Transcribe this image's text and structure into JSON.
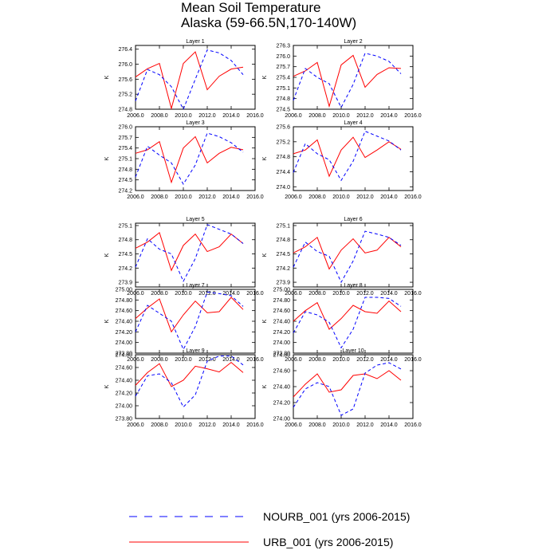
{
  "page": {
    "title": "Mean Soil Temperature",
    "subtitle": "Alaska (59-66.5N,170-140W)"
  },
  "legend": {
    "entries": [
      {
        "label": "NOURB_001 (yrs 2006-2015)",
        "series": "NOURB_001",
        "style": "dashed",
        "color": "#0000ff"
      },
      {
        "label": "URB_001 (yrs 2006-2015)",
        "series": "URB_001",
        "style": "solid",
        "color": "#ff0000"
      }
    ],
    "placement": "bottom"
  },
  "chart_data": [
    {
      "type": "line",
      "title": "Layer 1",
      "ylabel": "K",
      "xlim": [
        2006,
        2016
      ],
      "xticks": [
        "2006.0",
        "2008.0",
        "2010.0",
        "2012.0",
        "2014.0",
        "2016.0"
      ],
      "ylim": [
        274.8,
        276.5
      ],
      "yticks": [
        "274.8",
        "275.2",
        "275.6",
        "276.0",
        "276.4"
      ],
      "yticks_num": [
        274.8,
        275.2,
        275.6,
        276.0,
        276.4
      ],
      "x": [
        2006,
        2007,
        2008,
        2009,
        2010,
        2011,
        2012,
        2013,
        2014,
        2015
      ],
      "series": [
        {
          "name": "URB_001",
          "values": [
            275.66,
            275.88,
            276.02,
            274.82,
            276.02,
            276.33,
            275.32,
            275.68,
            275.87,
            275.92
          ]
        },
        {
          "name": "NOURB_001",
          "values": [
            275.02,
            275.86,
            275.72,
            275.4,
            274.8,
            275.6,
            276.38,
            276.3,
            276.1,
            275.72
          ]
        }
      ]
    },
    {
      "type": "line",
      "title": "Layer 2",
      "ylabel": "K",
      "xlim": [
        2006,
        2016
      ],
      "xticks": [
        "2006.0",
        "2008.0",
        "2010.0",
        "2012.0",
        "2014.0",
        "2016.0"
      ],
      "ylim": [
        274.5,
        276.3
      ],
      "yticks": [
        "274.5",
        "274.8",
        "275.1",
        "275.4",
        "275.7",
        "276.0",
        "276.3"
      ],
      "yticks_num": [
        274.5,
        274.8,
        275.1,
        275.4,
        275.7,
        276.0,
        276.3
      ],
      "x": [
        2006,
        2007,
        2008,
        2009,
        2010,
        2011,
        2012,
        2013,
        2014,
        2015
      ],
      "series": [
        {
          "name": "URB_001",
          "values": [
            275.43,
            275.58,
            275.82,
            274.58,
            275.75,
            276.02,
            275.12,
            275.48,
            275.67,
            275.65
          ]
        },
        {
          "name": "NOURB_001",
          "values": [
            274.75,
            275.65,
            275.4,
            275.22,
            274.55,
            275.2,
            276.08,
            276.0,
            275.85,
            275.5
          ]
        }
      ]
    },
    {
      "type": "line",
      "title": "Layer 3",
      "ylabel": "K",
      "xlim": [
        2006,
        2016
      ],
      "xticks": [
        "2006.0",
        "2008.0",
        "2010.0",
        "2012.0",
        "2014.0",
        "2016.0"
      ],
      "ylim": [
        274.2,
        276.0
      ],
      "yticks": [
        "274.2",
        "274.5",
        "274.8",
        "275.1",
        "275.4",
        "275.7",
        "276.0"
      ],
      "yticks_num": [
        274.2,
        274.5,
        274.8,
        275.1,
        275.4,
        275.7,
        276.0
      ],
      "x": [
        2006,
        2007,
        2008,
        2009,
        2010,
        2011,
        2012,
        2013,
        2014,
        2015
      ],
      "series": [
        {
          "name": "URB_001",
          "values": [
            275.25,
            275.35,
            275.58,
            274.43,
            275.4,
            275.72,
            274.98,
            275.25,
            275.42,
            275.35
          ]
        },
        {
          "name": "NOURB_001",
          "values": [
            274.58,
            275.45,
            275.2,
            274.98,
            274.38,
            274.92,
            275.82,
            275.72,
            275.55,
            275.28
          ]
        }
      ]
    },
    {
      "type": "line",
      "title": "Layer 4",
      "ylabel": "K",
      "xlim": [
        2006,
        2016
      ],
      "xticks": [
        "2006.0",
        "2008.0",
        "2010.0",
        "2012.0",
        "2014.0",
        "2016.0"
      ],
      "ylim": [
        273.9,
        275.6
      ],
      "yticks": [
        "274.0",
        "274.4",
        "274.8",
        "275.2",
        "275.6"
      ],
      "yticks_num": [
        274.0,
        274.4,
        274.8,
        275.2,
        275.6
      ],
      "x": [
        2006,
        2007,
        2008,
        2009,
        2010,
        2011,
        2012,
        2013,
        2014,
        2015
      ],
      "series": [
        {
          "name": "URB_001",
          "values": [
            274.88,
            274.98,
            275.25,
            274.28,
            274.98,
            275.32,
            274.78,
            274.98,
            275.2,
            275.0
          ]
        },
        {
          "name": "NOURB_001",
          "values": [
            274.38,
            275.15,
            274.88,
            274.72,
            274.17,
            274.68,
            275.48,
            275.35,
            275.22,
            274.98
          ]
        }
      ]
    },
    {
      "type": "line",
      "title": "Layer 5",
      "ylabel": "K",
      "xlim": [
        2006,
        2016
      ],
      "xticks": [
        "2006.0",
        "2008.0",
        "2010.0",
        "2012.0",
        "2014.0",
        "2016.0"
      ],
      "ylim": [
        273.8,
        275.15
      ],
      "yticks": [
        "273.9",
        "274.2",
        "274.5",
        "274.8",
        "275.1"
      ],
      "yticks_num": [
        273.9,
        274.2,
        274.5,
        274.8,
        275.1
      ],
      "x": [
        2006,
        2007,
        2008,
        2009,
        2010,
        2011,
        2012,
        2013,
        2014,
        2015
      ],
      "series": [
        {
          "name": "URB_001",
          "values": [
            274.62,
            274.75,
            274.95,
            274.15,
            274.68,
            274.92,
            274.55,
            274.65,
            274.92,
            274.72
          ]
        },
        {
          "name": "NOURB_001",
          "values": [
            274.22,
            274.82,
            274.6,
            274.5,
            273.92,
            274.4,
            275.12,
            275.02,
            274.92,
            274.72
          ]
        }
      ]
    },
    {
      "type": "line",
      "title": "Layer 6",
      "ylabel": "K",
      "xlim": [
        2006,
        2016
      ],
      "xticks": [
        "2006.0",
        "2008.0",
        "2010.0",
        "2012.0",
        "2014.0",
        "2016.0"
      ],
      "ylim": [
        273.8,
        275.15
      ],
      "yticks": [
        "273.9",
        "274.2",
        "274.5",
        "274.8",
        "275.1"
      ],
      "yticks_num": [
        273.9,
        274.2,
        274.5,
        274.8,
        275.1
      ],
      "x": [
        2006,
        2007,
        2008,
        2009,
        2010,
        2011,
        2012,
        2013,
        2014,
        2015
      ],
      "series": [
        {
          "name": "URB_001",
          "values": [
            274.52,
            274.65,
            274.85,
            274.18,
            274.58,
            274.82,
            274.52,
            274.58,
            274.85,
            274.65
          ]
        },
        {
          "name": "NOURB_001",
          "values": [
            274.22,
            274.75,
            274.55,
            274.45,
            273.9,
            274.35,
            274.98,
            274.92,
            274.85,
            274.68
          ]
        }
      ]
    },
    {
      "type": "line",
      "title": "Layer 7",
      "ylabel": "K",
      "xlim": [
        2006,
        2016
      ],
      "xticks": [
        "2006.0",
        "2008.0",
        "2010.0",
        "2012.0",
        "2014.0",
        "2016.0"
      ],
      "ylim": [
        273.8,
        275.0
      ],
      "yticks": [
        "273.80",
        "274.00",
        "274.20",
        "274.40",
        "274.60",
        "274.80",
        "275.00"
      ],
      "yticks_num": [
        273.8,
        274.0,
        274.2,
        274.4,
        274.6,
        274.8,
        275.0
      ],
      "x": [
        2006,
        2007,
        2008,
        2009,
        2010,
        2011,
        2012,
        2013,
        2014,
        2015
      ],
      "series": [
        {
          "name": "URB_001",
          "values": [
            274.45,
            274.65,
            274.82,
            274.2,
            274.52,
            274.78,
            274.56,
            274.58,
            274.85,
            274.62
          ]
        },
        {
          "name": "NOURB_001",
          "values": [
            274.2,
            274.7,
            274.55,
            274.4,
            273.87,
            274.3,
            274.95,
            274.92,
            274.88,
            274.68
          ]
        }
      ]
    },
    {
      "type": "line",
      "title": "Layer 8",
      "ylabel": "K",
      "xlim": [
        2006,
        2016
      ],
      "xticks": [
        "2006.0",
        "2008.0",
        "2010.0",
        "2012.0",
        "2014.0",
        "2016.0"
      ],
      "ylim": [
        273.8,
        275.0
      ],
      "yticks": [
        "273.80",
        "274.00",
        "274.20",
        "274.40",
        "274.60",
        "274.80",
        "275.00"
      ],
      "yticks_num": [
        273.8,
        274.0,
        274.2,
        274.4,
        274.6,
        274.8,
        275.0
      ],
      "x": [
        2006,
        2007,
        2008,
        2009,
        2010,
        2011,
        2012,
        2013,
        2014,
        2015
      ],
      "series": [
        {
          "name": "URB_001",
          "values": [
            274.4,
            274.6,
            274.75,
            274.25,
            274.45,
            274.7,
            274.58,
            274.55,
            274.78,
            274.58
          ]
        },
        {
          "name": "NOURB_001",
          "values": [
            274.18,
            274.58,
            274.52,
            274.38,
            273.9,
            274.25,
            274.85,
            274.85,
            274.83,
            274.68
          ]
        }
      ]
    },
    {
      "type": "line",
      "title": "Layer 9",
      "ylabel": "K",
      "xlim": [
        2006,
        2016
      ],
      "xticks": [
        "2006.0",
        "2008.0",
        "2010.0",
        "2012.0",
        "2014.0",
        "2016.0"
      ],
      "ylim": [
        273.8,
        274.8
      ],
      "yticks": [
        "273.80",
        "274.00",
        "274.20",
        "274.40",
        "274.60",
        "274.80"
      ],
      "yticks_num": [
        273.8,
        274.0,
        274.2,
        274.4,
        274.6,
        274.8
      ],
      "x": [
        2006,
        2007,
        2008,
        2009,
        2010,
        2011,
        2012,
        2013,
        2014,
        2015
      ],
      "series": [
        {
          "name": "URB_001",
          "values": [
            274.32,
            274.52,
            274.66,
            274.3,
            274.4,
            274.62,
            274.58,
            274.53,
            274.68,
            274.52
          ]
        },
        {
          "name": "NOURB_001",
          "values": [
            274.15,
            274.47,
            274.5,
            274.36,
            273.98,
            274.17,
            274.7,
            274.78,
            274.78,
            274.64
          ]
        }
      ]
    },
    {
      "type": "line",
      "title": "Layer 10",
      "ylabel": "K",
      "xlim": [
        2006,
        2016
      ],
      "xticks": [
        "2006.0",
        "2008.0",
        "2010.0",
        "2012.0",
        "2014.0",
        "2016.0"
      ],
      "ylim": [
        274.0,
        274.8
      ],
      "yticks": [
        "274.00",
        "274.20",
        "274.40",
        "274.60",
        "274.80"
      ],
      "yticks_num": [
        274.0,
        274.2,
        274.4,
        274.6,
        274.8
      ],
      "x": [
        2006,
        2007,
        2008,
        2009,
        2010,
        2011,
        2012,
        2013,
        2014,
        2015
      ],
      "series": [
        {
          "name": "URB_001",
          "values": [
            274.27,
            274.43,
            274.56,
            274.33,
            274.36,
            274.54,
            274.56,
            274.5,
            274.6,
            274.48
          ]
        },
        {
          "name": "NOURB_001",
          "values": [
            274.14,
            274.37,
            274.45,
            274.4,
            274.04,
            274.12,
            274.57,
            274.67,
            274.7,
            274.62
          ]
        }
      ]
    }
  ]
}
